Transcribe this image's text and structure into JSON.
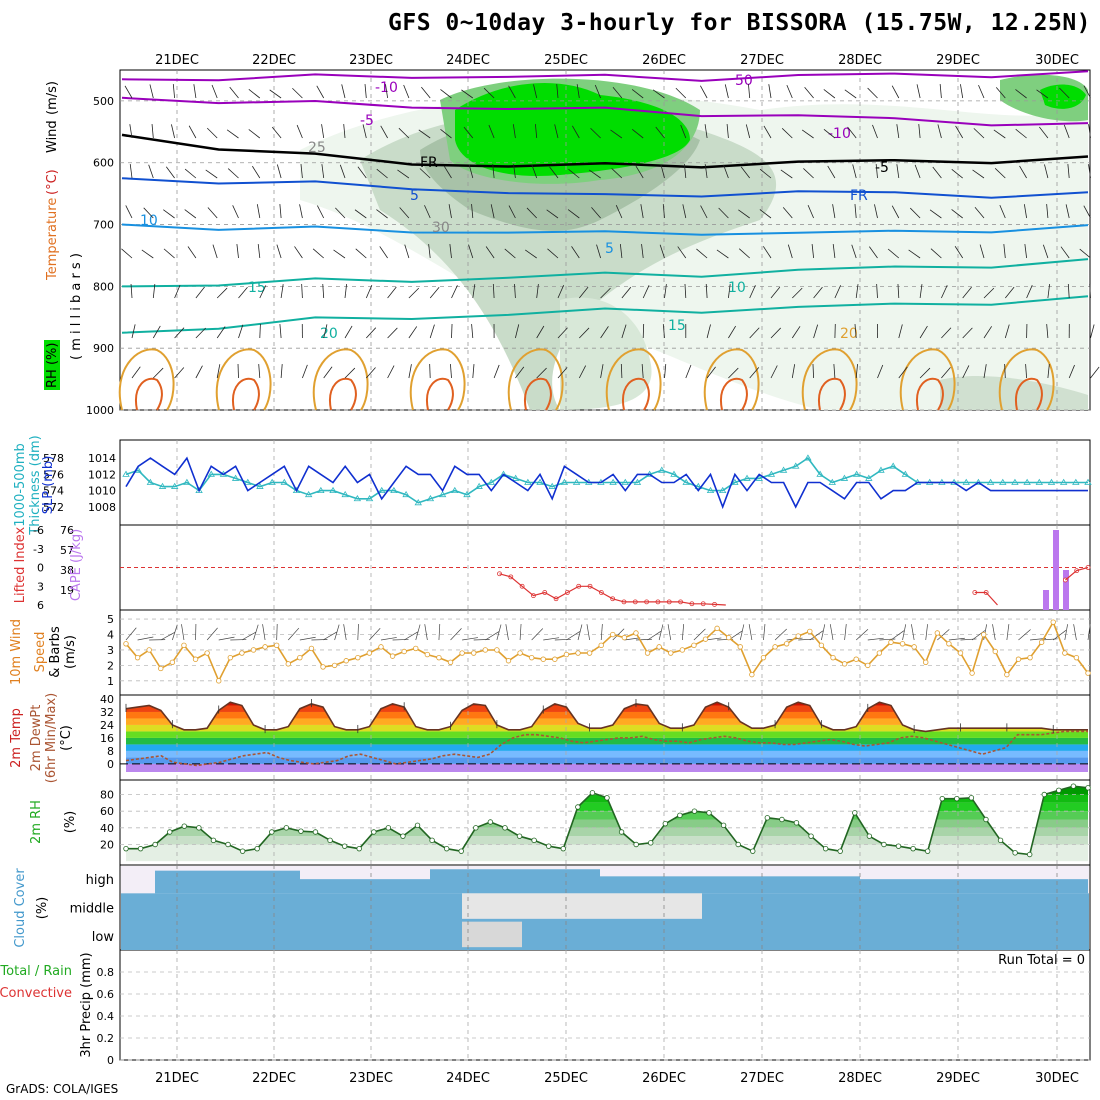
{
  "title": "GFS 0~10day 3-hourly for BISSORA (15.75W, 12.25N)",
  "footer": "GrADS: COLA/IGES",
  "dates": [
    "21DEC",
    "22DEC",
    "23DEC",
    "24DEC",
    "25DEC",
    "26DEC",
    "27DEC",
    "28DEC",
    "29DEC",
    "30DEC"
  ],
  "colors": {
    "rh_green": "#00dd00",
    "temp_purple": "#9900bb",
    "freezing": "#000000",
    "blue": "#1050d0",
    "lightblue": "#1890e0",
    "teal": "#10b0a0",
    "orange": "#e0a030",
    "cloud": "#6aaed6",
    "cape": "#bb77ee",
    "lifted": "#dd3333"
  },
  "chart_data": [
    {
      "type": "contour",
      "panel": "upper-air",
      "ylabel_parts": [
        "RH (%)",
        "Temperature",
        "(°C)",
        "Wind",
        "(m/s)"
      ],
      "yaxis_title": "( m i l l i b a r s )",
      "yticks": [
        "500",
        "600",
        "700",
        "800",
        "900",
        "1000"
      ],
      "ylim": [
        1000,
        450
      ],
      "contour_labels": [
        "-10",
        "-5",
        "FR",
        "5",
        "10",
        "15",
        "20",
        "25",
        "30",
        "50",
        "-10",
        "-5",
        "FR",
        "5",
        "10",
        "15",
        "20"
      ],
      "series": [
        {
          "name": "-10",
          "values": [
            465,
            463,
            462,
            460,
            460,
            462,
            463,
            460,
            458,
            457,
            456
          ]
        },
        {
          "name": "-5",
          "values": [
            495,
            500,
            505,
            508,
            512,
            515,
            520,
            525,
            530,
            535,
            540
          ]
        },
        {
          "name": "FR",
          "values": [
            555,
            575,
            590,
            600,
            605,
            605,
            603,
            600,
            598,
            596,
            594
          ]
        },
        {
          "name": "5",
          "values": [
            625,
            630,
            635,
            640,
            648,
            655,
            650,
            648,
            650,
            652,
            652
          ]
        },
        {
          "name": "10",
          "values": [
            700,
            705,
            708,
            710,
            712,
            715,
            712,
            715,
            712,
            708,
            705
          ]
        },
        {
          "name": "15",
          "values": [
            800,
            795,
            792,
            790,
            785,
            782,
            780,
            775,
            770,
            765,
            760
          ]
        },
        {
          "name": "20",
          "values": [
            875,
            865,
            855,
            850,
            845,
            840,
            838,
            835,
            830,
            825,
            820
          ]
        }
      ]
    },
    {
      "type": "line",
      "panel": "slp-thickness",
      "ylabel": [
        "SLP (mb)",
        "Thickness (dm)",
        "1000-500mb"
      ],
      "yticks_left": [
        "572",
        "574",
        "576",
        "578"
      ],
      "yticks_right": [
        "1008",
        "1010",
        "1012",
        "1014"
      ],
      "series": [
        {
          "name": "SLP (mb)",
          "values": [
            1010.5,
            1013,
            1014,
            1013,
            1012,
            1014,
            1010,
            1013,
            1012,
            1013,
            1010,
            1011,
            1012,
            1013,
            1010,
            1013,
            1012,
            1011,
            1013,
            1011,
            1012,
            1009,
            1011,
            1013,
            1012,
            1012,
            1010,
            1013,
            1012,
            1012,
            1010,
            1012,
            1011,
            1010,
            1012,
            1009,
            1013,
            1012,
            1011,
            1011,
            1012,
            1010,
            1012,
            1012,
            1011,
            1011,
            1012,
            1010,
            1012,
            1008,
            1012,
            1010,
            1012,
            1011,
            1011,
            1008,
            1011,
            1011,
            1010,
            1009,
            1011,
            1011,
            1009,
            1010,
            1010,
            1011,
            1011,
            1011,
            1011,
            1010,
            1011,
            1010,
            1010,
            1010,
            1010,
            1010,
            1010,
            1010,
            1010,
            1010
          ]
        },
        {
          "name": "Thickness (dm)",
          "values": [
            576,
            576.5,
            575,
            574.5,
            574.5,
            575,
            574,
            576,
            576,
            575.5,
            575,
            574.5,
            575,
            575,
            574,
            573.5,
            574,
            574,
            573.5,
            573,
            573,
            574,
            574,
            573.5,
            572.5,
            573,
            573.5,
            574,
            573.5,
            574.5,
            575,
            576,
            575.5,
            575,
            575,
            574.5,
            575,
            575,
            575,
            575,
            575,
            575,
            575,
            576,
            576.5,
            576,
            575,
            574.5,
            574,
            574,
            575,
            575.5,
            575.5,
            576,
            576.5,
            577,
            578,
            576,
            575,
            575.5,
            576,
            575.5,
            576.5,
            577,
            576,
            575,
            575,
            575,
            575,
            575,
            575,
            575,
            575,
            575,
            575,
            575,
            575,
            575,
            575,
            575
          ]
        }
      ]
    },
    {
      "type": "bar+line",
      "panel": "cape-lifted",
      "ylabel": [
        "CAPE (J/kg)",
        "Lifted Index"
      ],
      "yticks_left": [
        "-6",
        "-3",
        "0",
        "3",
        "6"
      ],
      "yticks_right": [
        "76",
        "57",
        "38",
        "19"
      ],
      "cape_bars": [
        {
          "x": "30DEC",
          "values": [
            19,
            76,
            38,
            0
          ]
        }
      ],
      "lifted_index": [
        6,
        6,
        6,
        6,
        6,
        6,
        6,
        6,
        6,
        6,
        6,
        6,
        6,
        6,
        6,
        6,
        6,
        6,
        6,
        6,
        6,
        6,
        6,
        6,
        6,
        6,
        6,
        6,
        6,
        6,
        6,
        6,
        6,
        1,
        1.5,
        3,
        4.5,
        4,
        5,
        4,
        3,
        3,
        4,
        5,
        5.5,
        5.5,
        5.5,
        5.5,
        5.5,
        5.5,
        5.8,
        5.8,
        5.9,
        6,
        6,
        6,
        6,
        6,
        6,
        6,
        6,
        6,
        6,
        6,
        6,
        6,
        6,
        6,
        6,
        6,
        6,
        6,
        6,
        6,
        6,
        4,
        4,
        6,
        6,
        6,
        6,
        6,
        6,
        2,
        0.5,
        0
      ]
    },
    {
      "type": "line",
      "panel": "wind10m",
      "ylabel": [
        "10m Wind",
        "Speed",
        "& Barbs",
        "(m/s)"
      ],
      "yticks": [
        "1",
        "2",
        "3",
        "4",
        "5"
      ],
      "series": [
        {
          "name": "Speed",
          "values": [
            3.4,
            2.5,
            3,
            1.8,
            2.2,
            3.3,
            2.4,
            2.8,
            1,
            2.5,
            2.8,
            3,
            3.2,
            3.3,
            2.1,
            2.5,
            3.1,
            1.9,
            2,
            2.3,
            2.5,
            2.8,
            3.2,
            2.6,
            2.9,
            3.1,
            2.7,
            2.5,
            2.2,
            2.8,
            2.8,
            3,
            3,
            2.3,
            2.8,
            2.5,
            2.4,
            2.4,
            2.7,
            2.8,
            2.8,
            3.3,
            4,
            3.8,
            4.1,
            2.8,
            3.2,
            2.8,
            3,
            3.3,
            3.7,
            4.4,
            3.8,
            3.2,
            1.4,
            2.5,
            3.2,
            3.4,
            3.9,
            4.2,
            3.3,
            2.5,
            2.1,
            2.4,
            2,
            2.8,
            3.5,
            3.4,
            3.2,
            2.2,
            4.1,
            3.4,
            2.8,
            1.5,
            4,
            2.9,
            1.4,
            2.4,
            2.5,
            3.5,
            4.8,
            2.8,
            2.5,
            1.5
          ]
        }
      ]
    },
    {
      "type": "area",
      "panel": "temp-dewpt",
      "ylabel": [
        "2m Temp",
        "2m DewPt",
        "(6hr Min/Max)",
        "(°C)"
      ],
      "yticks": [
        "0",
        "8",
        "16",
        "24",
        "32",
        "40"
      ],
      "series": [
        {
          "name": "2m Temp",
          "values": [
            34,
            35,
            36,
            33,
            24,
            21,
            21,
            22,
            33,
            38,
            36,
            24,
            21,
            21,
            23,
            34,
            37,
            35,
            23,
            21,
            21,
            23,
            34,
            37,
            35,
            23,
            21,
            21,
            23,
            33,
            37,
            36,
            24,
            21,
            21,
            23,
            33,
            37,
            35,
            25,
            22,
            22,
            24,
            34,
            37,
            36,
            25,
            22,
            22,
            24,
            35,
            38,
            35,
            26,
            22,
            22,
            24,
            35,
            38,
            36,
            24,
            21,
            21,
            23,
            34,
            38,
            36,
            24,
            21,
            20,
            21,
            22,
            22,
            22,
            22,
            22,
            22,
            22,
            22,
            22,
            21,
            21,
            21,
            21
          ]
        },
        {
          "name": "2m DewPt",
          "values": [
            2,
            3,
            4,
            5,
            1,
            0,
            -1,
            0,
            1,
            3,
            5,
            6,
            7,
            4,
            2,
            1,
            0,
            1,
            2,
            5,
            6,
            4,
            2,
            0,
            1,
            2,
            3,
            5,
            6,
            5,
            4,
            6,
            12,
            16,
            18,
            18,
            17,
            16,
            14,
            13,
            14,
            15,
            16,
            16,
            17,
            15,
            14,
            14,
            13,
            15,
            16,
            17,
            16,
            14,
            13,
            13,
            12,
            12,
            13,
            14,
            15,
            14,
            12,
            11,
            12,
            13,
            16,
            17,
            16,
            14,
            12,
            10,
            8,
            6,
            8,
            10,
            18,
            18,
            18,
            19,
            20,
            20,
            20
          ]
        }
      ]
    },
    {
      "type": "area",
      "panel": "rh2m",
      "ylabel": [
        "2m RH",
        "(%)"
      ],
      "yticks": [
        "20",
        "40",
        "60",
        "80"
      ],
      "series": [
        {
          "name": "2m RH",
          "values": [
            15,
            15,
            20,
            35,
            42,
            40,
            25,
            20,
            12,
            15,
            35,
            40,
            36,
            35,
            25,
            18,
            15,
            35,
            40,
            30,
            43,
            25,
            15,
            12,
            40,
            47,
            40,
            30,
            25,
            18,
            15,
            65,
            82,
            76,
            35,
            20,
            22,
            45,
            55,
            60,
            58,
            43,
            20,
            12,
            52,
            50,
            46,
            30,
            15,
            12,
            58,
            30,
            20,
            18,
            15,
            12,
            75,
            75,
            76,
            50,
            25,
            10,
            8,
            80,
            85,
            90,
            88
          ]
        }
      ]
    },
    {
      "type": "area",
      "panel": "cloud",
      "ylabel": [
        "Cloud Cover",
        "(%)"
      ],
      "categories": [
        "high",
        "middle",
        "low"
      ]
    },
    {
      "type": "bar",
      "panel": "precip",
      "ylabel": [
        "3hr Precip (mm)",
        "Total / Rain",
        "Convective"
      ],
      "yticks": [
        "0",
        "0.2",
        "0.4",
        "0.6",
        "0.8"
      ],
      "annotation": "Run Total = 0",
      "ylim": [
        0,
        1
      ]
    }
  ]
}
